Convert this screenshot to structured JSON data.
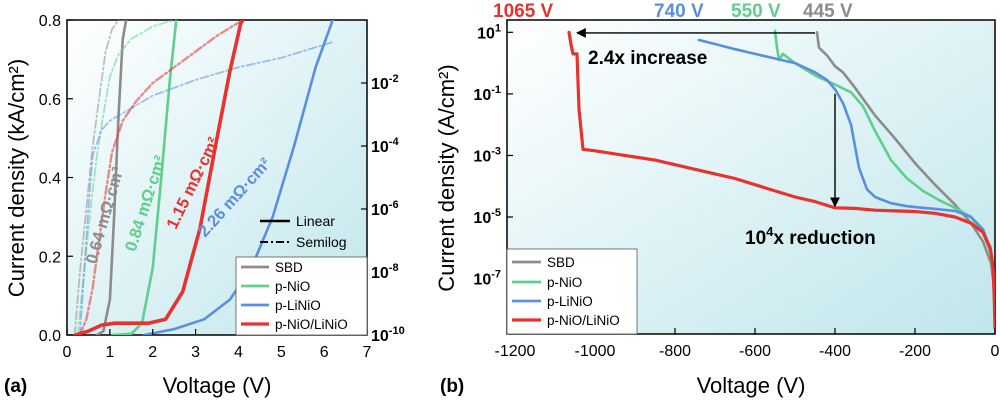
{
  "colors": {
    "sbd": "#8c8c8c",
    "p_nio": "#5fcf8c",
    "p_linio": "#5a8fe0",
    "p_nio_linio": "#e8322e",
    "bg_light": "#ffffff",
    "bg_dark": "#bfe6ec"
  },
  "chart_data": [
    {
      "type": "line",
      "panel_label": "(a)",
      "title": "",
      "xlabel": "Voltage (V)",
      "ylabel": "Current density (kA/cm²)",
      "y2label": "",
      "xlim": [
        0,
        7
      ],
      "ylim": [
        0,
        0.8
      ],
      "y2lim_log10": [
        -10,
        0
      ],
      "x_ticks": [
        "0",
        "1",
        "2",
        "3",
        "4",
        "5",
        "6",
        "7"
      ],
      "y_ticks": [
        "0.0",
        "0.2",
        "0.4",
        "0.6",
        "0.8"
      ],
      "y2_ticks": [
        {
          "base": "10",
          "exp": "-10",
          "log": -10
        },
        {
          "base": "10",
          "exp": "-8",
          "log": -8
        },
        {
          "base": "10",
          "exp": "-6",
          "log": -6
        },
        {
          "base": "10",
          "exp": "-4",
          "log": -4
        },
        {
          "base": "10",
          "exp": "-2",
          "log": -2
        }
      ],
      "style_legend": [
        {
          "style": "solid",
          "label": "Linear"
        },
        {
          "style": "dashdot",
          "label": "Semilog"
        }
      ],
      "legend": [
        {
          "key": "sbd",
          "label": "SBD"
        },
        {
          "key": "p_nio",
          "label": "p-NiO"
        },
        {
          "key": "p_linio",
          "label": "p-LiNiO"
        },
        {
          "key": "p_nio_linio",
          "label": "p-NiO/LiNiO"
        }
      ],
      "annotations": [
        {
          "key": "sbd",
          "text": "0.64 mΩ·cm²",
          "x": 1.0,
          "y": 0.3,
          "angle": -74
        },
        {
          "key": "p_nio",
          "text": "0.84 mΩ·cm²",
          "x": 1.95,
          "y": 0.33,
          "angle": -72
        },
        {
          "key": "p_nio_linio",
          "text": "1.15 mΩ·cm²",
          "x": 3.05,
          "y": 0.38,
          "angle": -64
        },
        {
          "key": "p_linio",
          "text": "2.26 mΩ·cm²",
          "x": 4.0,
          "y": 0.34,
          "angle": -48
        }
      ],
      "series": [
        {
          "key": "sbd",
          "name": "SBD",
          "axis": "linear",
          "style": "solid",
          "x": [
            0.7,
            0.85,
            1.0,
            1.1,
            1.2,
            1.3,
            1.38
          ],
          "y": [
            0,
            0.01,
            0.09,
            0.3,
            0.55,
            0.75,
            0.8
          ]
        },
        {
          "key": "sbd",
          "name": "SBD",
          "axis": "log",
          "style": "dashdot",
          "x": [
            0.18,
            0.3,
            0.45,
            0.6,
            0.75,
            0.9,
            1.05,
            1.2,
            1.4
          ],
          "y": [
            -10,
            -8,
            -6,
            -4,
            -2.5,
            -1,
            -0.3,
            0,
            0
          ]
        },
        {
          "key": "p_nio",
          "name": "p-NiO",
          "axis": "linear",
          "style": "solid",
          "x": [
            1.05,
            1.5,
            1.75,
            2.0,
            2.2,
            2.4,
            2.55
          ],
          "y": [
            0,
            0.003,
            0.03,
            0.17,
            0.4,
            0.65,
            0.8
          ]
        },
        {
          "key": "p_nio",
          "name": "p-NiO",
          "axis": "log",
          "style": "dashdot",
          "x": [
            0.25,
            0.4,
            0.55,
            0.7,
            0.85,
            1.0,
            1.2,
            1.5,
            2.0,
            2.5
          ],
          "y": [
            -10,
            -8,
            -6,
            -4.3,
            -3,
            -1.8,
            -1.1,
            -0.6,
            -0.2,
            0
          ]
        },
        {
          "key": "p_linio",
          "name": "p-LiNiO",
          "axis": "linear",
          "style": "solid",
          "x": [
            1.8,
            2.5,
            3.2,
            3.8,
            4.3,
            4.8,
            5.3,
            5.8,
            6.2
          ],
          "y": [
            0,
            0.015,
            0.04,
            0.09,
            0.17,
            0.3,
            0.48,
            0.68,
            0.8
          ]
        },
        {
          "key": "p_linio",
          "name": "p-LiNiO",
          "axis": "log",
          "style": "dashdot",
          "x": [
            0.3,
            0.4,
            0.5,
            0.6,
            0.8,
            1.0,
            1.5,
            2.0,
            3.0,
            4.0,
            5.0,
            6.2
          ],
          "y": [
            -10,
            -8,
            -6,
            -4.3,
            -3.5,
            -3.2,
            -2.8,
            -2.4,
            -1.9,
            -1.5,
            -1.2,
            -0.7
          ]
        },
        {
          "key": "p_nio_linio",
          "name": "p-NiO/LiNiO",
          "axis": "linear",
          "style": "solid",
          "x": [
            0.2,
            0.5,
            0.8,
            1.1,
            1.5,
            1.9,
            2.3,
            2.7,
            3.1,
            3.5,
            3.8,
            4.05,
            4.1
          ],
          "y": [
            0,
            0.01,
            0.025,
            0.03,
            0.03,
            0.03,
            0.04,
            0.11,
            0.27,
            0.5,
            0.67,
            0.79,
            0.8
          ]
        },
        {
          "key": "p_nio_linio",
          "name": "p-NiO/LiNiO",
          "axis": "log",
          "style": "dashdot",
          "x": [
            0.3,
            0.45,
            0.6,
            0.75,
            0.9,
            1.05,
            1.3,
            1.6,
            2.0,
            2.5,
            3.0,
            3.5,
            4.1
          ],
          "y": [
            -10,
            -9.5,
            -8.5,
            -7,
            -5.5,
            -4.2,
            -3.2,
            -2.6,
            -2.0,
            -1.5,
            -1.0,
            -0.5,
            0
          ]
        }
      ]
    },
    {
      "type": "line",
      "panel_label": "(b)",
      "title": "",
      "xlabel": "Voltage (V)",
      "ylabel": "Current density (A/cm²)",
      "xlim": [
        -1220,
        0
      ],
      "ylim_log10": [
        -8.8,
        1.4
      ],
      "x_ticks": [
        "-1200",
        "-1000",
        "-800",
        "-600",
        "-400",
        "-200",
        "0"
      ],
      "y_ticks": [
        {
          "base": "10",
          "exp": "1",
          "log": 1
        },
        {
          "base": "10",
          "exp": "-1",
          "log": -1
        },
        {
          "base": "10",
          "exp": "-3",
          "log": -3
        },
        {
          "base": "10",
          "exp": "-5",
          "log": -5
        },
        {
          "base": "10",
          "exp": "-7",
          "log": -7
        }
      ],
      "breakdown_labels": [
        {
          "key": "p_nio_linio",
          "text": "1065 V"
        },
        {
          "key": "p_linio",
          "text": "740 V"
        },
        {
          "key": "p_nio",
          "text": "550 V"
        },
        {
          "key": "sbd",
          "text": "445 V"
        }
      ],
      "annotations": [
        {
          "text": "2.4x increase"
        },
        {
          "base": "10",
          "exp": "4",
          "text": "x reduction"
        }
      ],
      "arrows": [
        {
          "from": [
            -450,
            0.98
          ],
          "to": [
            -1045,
            0.98
          ]
        },
        {
          "from": [
            -400,
            -1.0
          ],
          "to": [
            -400,
            -4.65
          ]
        }
      ],
      "legend": [
        {
          "key": "sbd",
          "label": "SBD"
        },
        {
          "key": "p_nio",
          "label": "p-NiO"
        },
        {
          "key": "p_linio",
          "label": "p-LiNiO"
        },
        {
          "key": "p_nio_linio",
          "label": "p-NiO/LiNiO"
        }
      ],
      "series": [
        {
          "key": "sbd",
          "name": "SBD",
          "x": [
            -445,
            -440,
            -420,
            -400,
            -380,
            -350,
            -300,
            -250,
            -200,
            -150,
            -100,
            -60,
            -30,
            -10,
            -3,
            0
          ],
          "y": [
            1.0,
            0.5,
            0.25,
            -0.1,
            -0.3,
            -0.8,
            -1.7,
            -2.45,
            -3.25,
            -3.95,
            -4.6,
            -5.2,
            -5.8,
            -6.5,
            -7.2,
            -7.8
          ]
        },
        {
          "key": "p_nio",
          "name": "p-NiO",
          "x": [
            -550,
            -545,
            -540,
            -530,
            -500,
            -450,
            -400,
            -360,
            -330,
            -300,
            -260,
            -220,
            -180,
            -140,
            -100,
            -60,
            -30,
            -10,
            -3,
            0
          ],
          "y": [
            1.05,
            0.5,
            0.1,
            0.3,
            0.0,
            -0.4,
            -0.7,
            -0.95,
            -1.4,
            -2.2,
            -3.15,
            -3.75,
            -4.15,
            -4.45,
            -4.7,
            -5.0,
            -5.5,
            -6.2,
            -7.0,
            -7.6
          ]
        },
        {
          "key": "p_linio",
          "name": "p-LiNiO",
          "x": [
            -740,
            -700,
            -650,
            -600,
            -550,
            -500,
            -450,
            -420,
            -400,
            -380,
            -360,
            -340,
            -320,
            -300,
            -260,
            -220,
            -180,
            -140,
            -100,
            -60,
            -30,
            -10,
            -3,
            0
          ],
          "y": [
            0.75,
            0.62,
            0.45,
            0.3,
            0.15,
            0.0,
            -0.3,
            -0.55,
            -0.85,
            -1.3,
            -2.0,
            -3.4,
            -4.1,
            -4.35,
            -4.55,
            -4.65,
            -4.7,
            -4.75,
            -4.8,
            -5.0,
            -5.4,
            -6.1,
            -6.9,
            -7.6
          ]
        },
        {
          "key": "p_nio_linio",
          "name": "p-NiO/LiNiO",
          "x": [
            -1065,
            -1060,
            -1055,
            -1045,
            -1040,
            -1030,
            -1000,
            -950,
            -900,
            -850,
            -800,
            -750,
            -700,
            -650,
            -600,
            -550,
            -500,
            -450,
            -400,
            -350,
            -300,
            -250,
            -200,
            -150,
            -100,
            -60,
            -30,
            -12,
            -5,
            -2,
            0
          ],
          "y": [
            1.0,
            0.6,
            0.3,
            0.3,
            -1.5,
            -2.8,
            -2.85,
            -2.95,
            -3.05,
            -3.15,
            -3.3,
            -3.45,
            -3.6,
            -3.75,
            -3.95,
            -4.15,
            -4.35,
            -4.5,
            -4.7,
            -4.72,
            -4.78,
            -4.8,
            -4.82,
            -4.88,
            -5.0,
            -5.2,
            -5.5,
            -6.0,
            -6.6,
            -7.6,
            -8.6
          ]
        }
      ]
    }
  ]
}
